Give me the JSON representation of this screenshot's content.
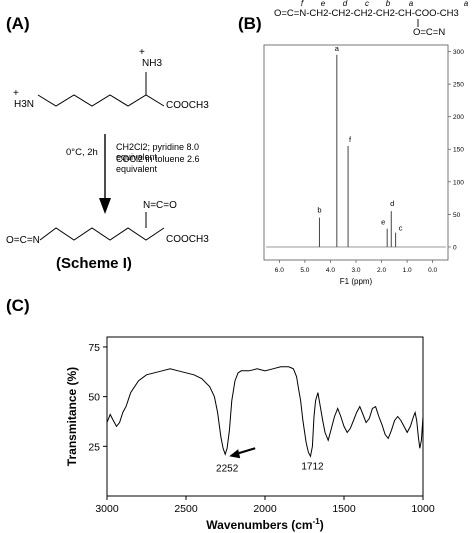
{
  "panel_a": {
    "label": "(A)",
    "reagents": {
      "temp_time": "0°C, 2h",
      "line1": "CH2Cl2; pyridine 8.0 equivalent",
      "line2": "COCl2 in toluene 2.6 equivalent"
    },
    "top_molecule": {
      "amine_left": "H3N",
      "amine_top": "NH3",
      "plus": "+",
      "ester": "COOCH3"
    },
    "bottom_molecule": {
      "isocyanate_left": "O=C=N",
      "isocyanate_top": "N=C=O",
      "ester": "COOCH3"
    },
    "scheme_label": "(Scheme I)"
  },
  "panel_b": {
    "label": "(B)",
    "structure_top": "O=C=N-CH2-CH2-CH2-CH2-CH-COO-CH3",
    "structure_bottom": "O=C=N",
    "position_letters": [
      "f",
      "e",
      "d",
      "c",
      "b",
      "a"
    ],
    "peak_labels": [
      "a",
      "b",
      "c",
      "d",
      "e",
      "f"
    ],
    "x_label": "F1 (ppm)",
    "chart_data": {
      "type": "line",
      "title": "",
      "xlabel": "F1 (ppm)",
      "ylabel": "",
      "xlim": [
        6.6,
        -0.6
      ],
      "ylim": [
        -20,
        310
      ],
      "x_ticks": [
        6.0,
        5.0,
        4.0,
        3.0,
        2.0,
        1.0,
        0.0
      ],
      "y_ticks": [
        0,
        50,
        100,
        150,
        200,
        250,
        300
      ],
      "grid": false,
      "peaks": [
        {
          "label": "b",
          "x": 4.43,
          "y": 45
        },
        {
          "label": "a",
          "x": 3.75,
          "y": 295
        },
        {
          "label": "f",
          "x": 3.31,
          "y": 155
        },
        {
          "label": "e",
          "x": 1.78,
          "y": 28
        },
        {
          "label": "d",
          "x": 1.62,
          "y": 55
        },
        {
          "label": "c",
          "x": 1.45,
          "y": 22
        }
      ]
    }
  },
  "panel_c": {
    "label": "(C)",
    "chart_data": {
      "type": "line",
      "title": "",
      "xlabel": "Wavenumbers (cm-1)",
      "ylabel": "Transmitance (%)",
      "xlim": [
        3000,
        1000
      ],
      "ylim": [
        0,
        80
      ],
      "x_ticks": [
        3000,
        2500,
        2000,
        1500,
        1000
      ],
      "y_ticks": [
        25,
        50,
        75
      ],
      "grid": false,
      "series": [
        {
          "name": "",
          "x": [
            3000,
            2980,
            2960,
            2940,
            2920,
            2900,
            2880,
            2850,
            2800,
            2750,
            2700,
            2650,
            2600,
            2550,
            2500,
            2450,
            2400,
            2350,
            2320,
            2300,
            2280,
            2265,
            2252,
            2240,
            2225,
            2210,
            2190,
            2170,
            2150,
            2100,
            2050,
            2000,
            1950,
            1900,
            1850,
            1820,
            1800,
            1790,
            1775,
            1760,
            1740,
            1725,
            1712,
            1700,
            1690,
            1680,
            1665,
            1650,
            1635,
            1620,
            1600,
            1580,
            1560,
            1540,
            1520,
            1500,
            1480,
            1460,
            1440,
            1420,
            1400,
            1380,
            1360,
            1340,
            1320,
            1300,
            1280,
            1260,
            1240,
            1220,
            1200,
            1180,
            1160,
            1140,
            1120,
            1100,
            1080,
            1060,
            1050,
            1040,
            1030,
            1020,
            1010,
            1000
          ],
          "y": [
            37,
            41,
            38,
            35,
            37,
            42,
            45,
            52,
            58,
            61,
            62,
            63,
            64,
            63,
            62,
            61,
            59,
            55,
            50,
            42,
            30,
            24,
            21,
            24,
            33,
            48,
            58,
            62,
            63,
            63,
            64,
            63,
            64,
            65,
            65,
            64,
            60,
            55,
            48,
            38,
            27,
            22,
            20,
            25,
            40,
            48,
            52,
            45,
            38,
            32,
            28,
            34,
            40,
            44,
            40,
            35,
            32,
            34,
            38,
            42,
            45,
            41,
            37,
            39,
            44,
            45,
            40,
            36,
            31,
            29,
            33,
            38,
            40,
            38,
            35,
            32,
            35,
            40,
            42,
            38,
            30,
            24,
            28,
            40
          ]
        }
      ],
      "annotations": [
        {
          "text": "2252",
          "x": 2252,
          "y": 21
        },
        {
          "text": "1712",
          "x": 1712,
          "y": 20
        }
      ]
    }
  }
}
